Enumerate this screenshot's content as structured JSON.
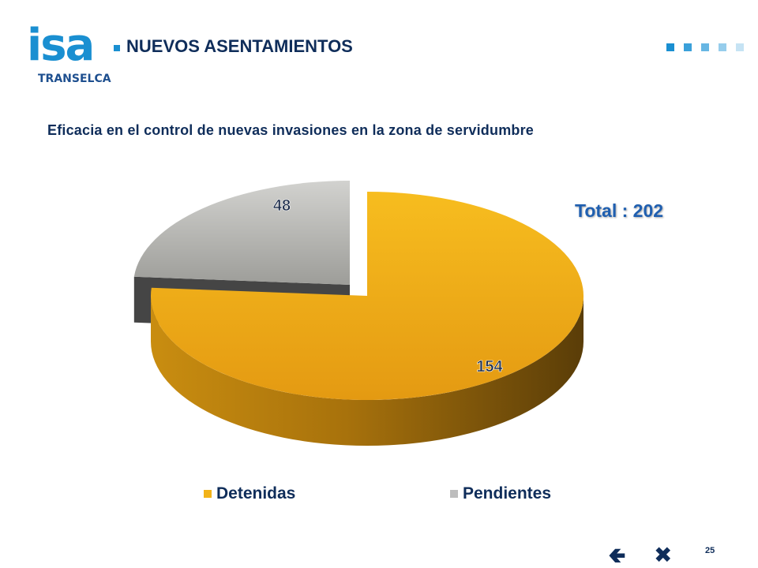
{
  "header": {
    "logo_text": "isa",
    "logo_sub": "TRANSELCA",
    "title": "NUEVOS ASENTAMIENTOS",
    "accent": "#1a8fd1"
  },
  "subtitle": "Eficacia en el control de nuevas invasiones en la zona de servidumbre",
  "total_label": "Total : 202",
  "chart_data": {
    "type": "pie",
    "style": "3d-exploded",
    "title": "",
    "categories": [
      "Detenidas",
      "Pendientes"
    ],
    "values": [
      154,
      48
    ],
    "colors": [
      "#f2b319",
      "#bdbdbd"
    ],
    "legend_position": "bottom",
    "data_labels": true
  },
  "footer": {
    "page_number": "25",
    "back_icon": "arrow-left-icon",
    "close_icon": "close-x-icon"
  }
}
